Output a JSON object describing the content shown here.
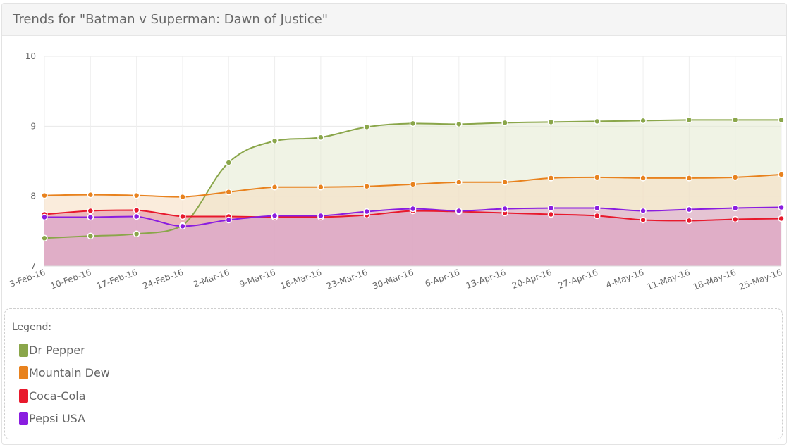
{
  "header": {
    "title": "Trends for \"Batman v Superman: Dawn of Justice\""
  },
  "legend": {
    "title": "Legend:"
  },
  "chart_data": {
    "type": "area",
    "title": "Trends for \"Batman v Superman: Dawn of Justice\"",
    "xlabel": "",
    "ylabel": "",
    "ylim": [
      7,
      10
    ],
    "yticks": [
      7,
      8,
      9,
      10
    ],
    "grid": true,
    "legend_position": "bottom",
    "x": [
      "3-Feb-16",
      "10-Feb-16",
      "17-Feb-16",
      "24-Feb-16",
      "2-Mar-16",
      "9-Mar-16",
      "16-Mar-16",
      "23-Mar-16",
      "30-Mar-16",
      "6-Apr-16",
      "13-Apr-16",
      "20-Apr-16",
      "27-Apr-16",
      "4-May-16",
      "11-May-16",
      "18-May-16",
      "25-May-16"
    ],
    "series": [
      {
        "name": "Dr Pepper",
        "color": "#8aa64a",
        "fill": "#e4eacf",
        "values": [
          7.4,
          7.43,
          7.46,
          7.58,
          8.48,
          8.79,
          8.84,
          8.99,
          9.04,
          9.03,
          9.05,
          9.06,
          9.07,
          9.08,
          9.09,
          9.09,
          9.09
        ]
      },
      {
        "name": "Mountain Dew",
        "color": "#e8821e",
        "fill": "#f5dcc0",
        "values": [
          8.01,
          8.02,
          8.01,
          7.99,
          8.06,
          8.13,
          8.13,
          8.14,
          8.17,
          8.2,
          8.2,
          8.26,
          8.27,
          8.26,
          8.26,
          8.27,
          8.31
        ]
      },
      {
        "name": "Coca-Cola",
        "color": "#e8192c",
        "fill": "#e08ea0",
        "values": [
          7.74,
          7.79,
          7.8,
          7.71,
          7.71,
          7.7,
          7.7,
          7.73,
          7.79,
          7.78,
          7.76,
          7.74,
          7.72,
          7.66,
          7.65,
          7.67,
          7.68
        ]
      },
      {
        "name": "Pepsi USA",
        "color": "#8a1de0",
        "fill": "#d9a8d6",
        "values": [
          7.7,
          7.7,
          7.71,
          7.57,
          7.66,
          7.72,
          7.72,
          7.78,
          7.82,
          7.79,
          7.82,
          7.83,
          7.83,
          7.79,
          7.81,
          7.83,
          7.84
        ]
      }
    ]
  }
}
